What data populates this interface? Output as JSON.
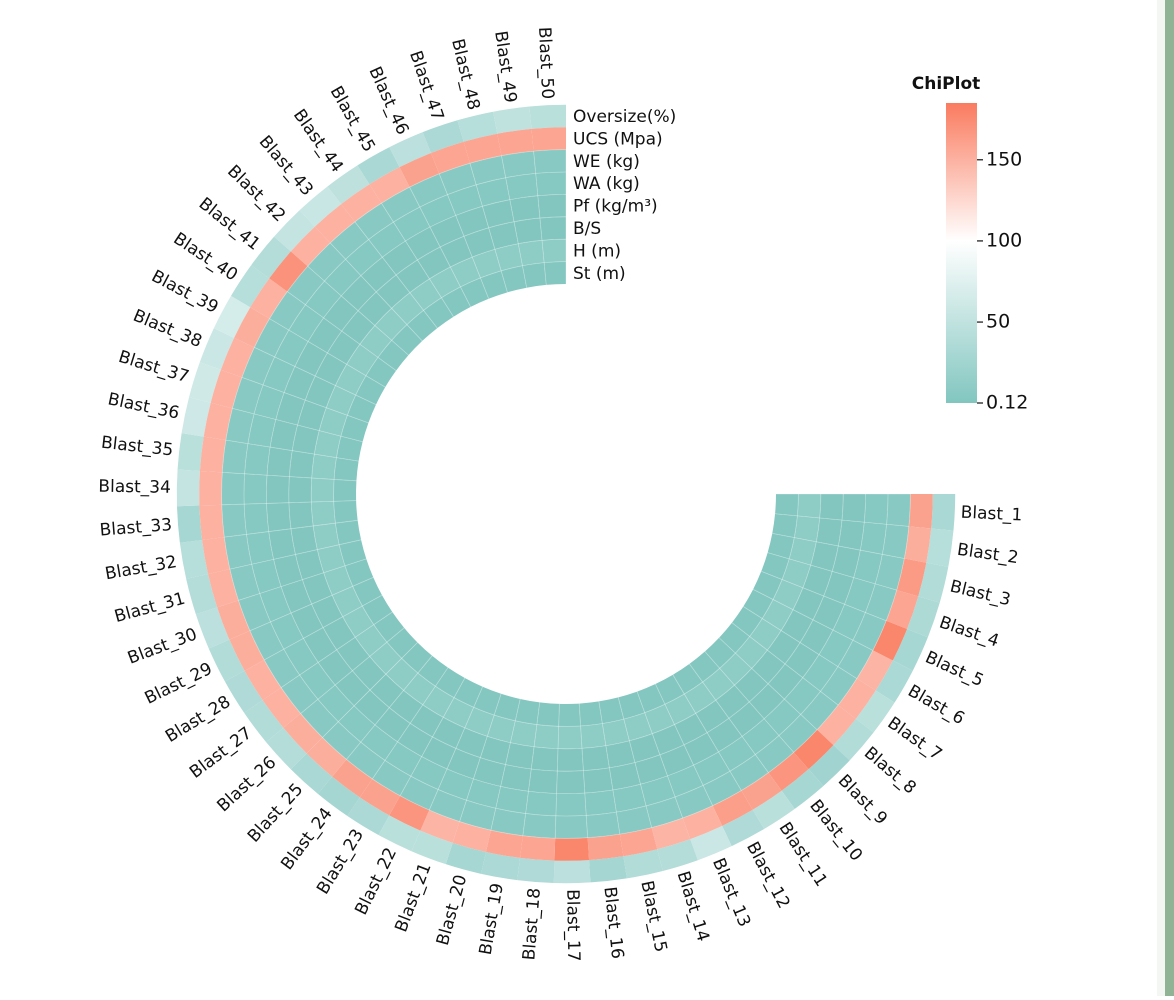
{
  "chart_data": {
    "type": "heatmap",
    "layout": "circular",
    "legend": {
      "title": "ChiPlot",
      "min": 0.12,
      "max": 185,
      "ticks": [
        {
          "value": 150,
          "label": "150"
        },
        {
          "value": 100,
          "label": "100"
        },
        {
          "value": 50,
          "label": "50"
        },
        {
          "value": 0.12,
          "label": "0.12"
        }
      ],
      "colors": {
        "low": "#82c6c0",
        "mid": "#ffffff",
        "high": "#fa7b5f"
      },
      "placement": "top-right"
    },
    "rows": [
      "Oversize(%)",
      "UCS (Mpa)",
      "WE (kg)",
      "WA (kg)",
      "Pf (kg/m³)",
      "B/S",
      "H (m)",
      "St (m)"
    ],
    "columns": [
      "Blast_1",
      "Blast_2",
      "Blast_3",
      "Blast_4",
      "Blast_5",
      "Blast_6",
      "Blast_7",
      "Blast_8",
      "Blast_9",
      "Blast_10",
      "Blast_11",
      "Blast_12",
      "Blast_13",
      "Blast_14",
      "Blast_15",
      "Blast_16",
      "Blast_17",
      "Blast_18",
      "Blast_19",
      "Blast_20",
      "Blast_21",
      "Blast_22",
      "Blast_23",
      "Blast_24",
      "Blast_25",
      "Blast_26",
      "Blast_27",
      "Blast_28",
      "Blast_29",
      "Blast_30",
      "Blast_31",
      "Blast_32",
      "Blast_33",
      "Blast_34",
      "Blast_35",
      "Blast_36",
      "Blast_37",
      "Blast_38",
      "Blast_39",
      "Blast_40",
      "Blast_41",
      "Blast_42",
      "Blast_43",
      "Blast_44",
      "Blast_45",
      "Blast_46",
      "Blast_47",
      "Blast_48",
      "Blast_49",
      "Blast_50"
    ],
    "series": [
      {
        "name": "Oversize(%)",
        "values": [
          32,
          42,
          38,
          35,
          30,
          33,
          45,
          38,
          25,
          30,
          45,
          36,
          58,
          40,
          38,
          28,
          46,
          36,
          34,
          30,
          45,
          45,
          34,
          28,
          32,
          40,
          38,
          36,
          38,
          46,
          40,
          42,
          30,
          52,
          45,
          60,
          62,
          58,
          66,
          42,
          40,
          52,
          56,
          48,
          32,
          46,
          34,
          42,
          50,
          45
        ]
      },
      {
        "name": "UCS (Mpa)",
        "values": [
          160,
          152,
          165,
          158,
          178,
          148,
          150,
          150,
          178,
          168,
          160,
          162,
          150,
          148,
          158,
          160,
          178,
          158,
          158,
          150,
          148,
          168,
          160,
          160,
          152,
          152,
          150,
          150,
          152,
          152,
          150,
          150,
          150,
          150,
          150,
          150,
          150,
          150,
          152,
          150,
          170,
          150,
          150,
          150,
          150,
          160,
          158,
          158,
          158,
          158
        ]
      },
      {
        "name": "WE (kg)",
        "values": [
          5,
          5,
          5,
          5,
          5,
          5,
          5,
          5,
          5,
          5,
          5,
          5,
          5,
          5,
          5,
          5,
          5,
          5,
          5,
          5,
          5,
          5,
          5,
          5,
          5,
          5,
          5,
          5,
          5,
          5,
          5,
          5,
          5,
          5,
          5,
          5,
          5,
          5,
          5,
          5,
          5,
          5,
          5,
          5,
          5,
          5,
          5,
          5,
          5,
          5
        ]
      },
      {
        "name": "WA (kg)",
        "values": [
          3,
          3,
          3,
          3,
          3,
          3,
          3,
          3,
          3,
          3,
          3,
          3,
          3,
          3,
          3,
          3,
          3,
          3,
          3,
          3,
          3,
          3,
          3,
          3,
          3,
          3,
          3,
          3,
          3,
          3,
          3,
          3,
          3,
          3,
          3,
          3,
          3,
          3,
          3,
          3,
          3,
          3,
          3,
          3,
          3,
          3,
          3,
          3,
          3,
          3
        ]
      },
      {
        "name": "Pf (kg/m³)",
        "values": [
          0.6,
          0.6,
          0.6,
          0.6,
          0.6,
          0.6,
          0.6,
          0.6,
          0.6,
          0.6,
          0.6,
          0.6,
          0.6,
          0.6,
          0.6,
          0.6,
          0.6,
          0.6,
          0.6,
          0.6,
          0.6,
          0.6,
          0.6,
          0.6,
          0.6,
          0.6,
          0.6,
          0.6,
          0.6,
          0.6,
          0.6,
          0.6,
          0.6,
          0.6,
          0.6,
          0.6,
          0.6,
          0.6,
          0.6,
          0.6,
          0.6,
          0.6,
          0.6,
          0.6,
          0.6,
          0.6,
          0.6,
          0.6,
          0.6,
          0.6
        ]
      },
      {
        "name": "B/S",
        "values": [
          0.8,
          0.8,
          0.8,
          0.8,
          0.8,
          0.8,
          0.8,
          0.8,
          0.8,
          0.8,
          0.8,
          0.8,
          0.8,
          0.8,
          0.8,
          0.8,
          0.8,
          0.8,
          0.8,
          0.8,
          0.8,
          0.8,
          0.8,
          0.8,
          0.8,
          0.8,
          0.8,
          0.8,
          0.8,
          0.8,
          0.8,
          0.8,
          0.8,
          0.8,
          0.8,
          0.8,
          0.8,
          0.8,
          0.8,
          0.8,
          0.8,
          0.8,
          0.8,
          0.8,
          0.8,
          0.8,
          0.8,
          0.8,
          0.8,
          0.8
        ]
      },
      {
        "name": "H (m)",
        "values": [
          10,
          10,
          10,
          10,
          10,
          10,
          10,
          10,
          10,
          10,
          10,
          10,
          10,
          10,
          10,
          10,
          10,
          10,
          10,
          10,
          10,
          10,
          10,
          10,
          10,
          10,
          10,
          10,
          10,
          10,
          10,
          10,
          10,
          10,
          10,
          10,
          10,
          10,
          10,
          10,
          10,
          10,
          10,
          10,
          10,
          10,
          10,
          10,
          10,
          10
        ]
      },
      {
        "name": "St (m)",
        "values": [
          2,
          2,
          2,
          2,
          2,
          2,
          2,
          2,
          2,
          2,
          2,
          2,
          2,
          2,
          2,
          2,
          2,
          2,
          2,
          2,
          2,
          2,
          2,
          2,
          2,
          2,
          2,
          2,
          2,
          2,
          2,
          2,
          2,
          2,
          2,
          2,
          2,
          2,
          2,
          2,
          2,
          2,
          2,
          2,
          2,
          2,
          2,
          2,
          2,
          2
        ]
      }
    ]
  }
}
